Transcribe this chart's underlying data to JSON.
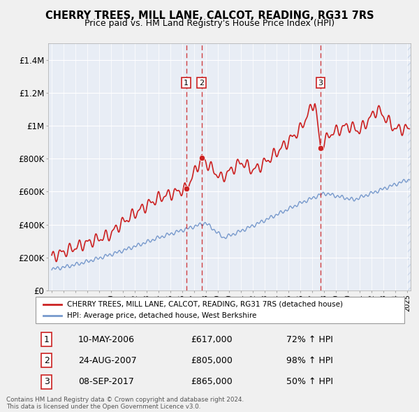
{
  "title": "CHERRY TREES, MILL LANE, CALCOT, READING, RG31 7RS",
  "subtitle": "Price paid vs. HM Land Registry's House Price Index (HPI)",
  "bg_color": "#f0f0f0",
  "plot_bg_color": "#e8edf5",
  "grid_color": "#ffffff",
  "ylim": [
    0,
    1500000
  ],
  "yticks": [
    0,
    200000,
    400000,
    600000,
    800000,
    1000000,
    1200000,
    1400000
  ],
  "ytick_labels": [
    "£0",
    "£200K",
    "£400K",
    "£600K",
    "£800K",
    "£1M",
    "£1.2M",
    "£1.4M"
  ],
  "xlim_start": 1994.7,
  "xlim_end": 2025.3,
  "red_line_color": "#cc2222",
  "blue_line_color": "#7799cc",
  "sale_marker_color": "#cc2222",
  "vline_color": "#cc2222",
  "transactions": [
    {
      "num": 1,
      "date": "10-MAY-2006",
      "price": 617000,
      "pct": "72%",
      "x_year": 2006.36
    },
    {
      "num": 2,
      "date": "24-AUG-2007",
      "price": 805000,
      "pct": "98%",
      "x_year": 2007.65
    },
    {
      "num": 3,
      "date": "08-SEP-2017",
      "price": 865000,
      "pct": "50%",
      "x_year": 2017.69
    }
  ],
  "legend_line1": "CHERRY TREES, MILL LANE, CALCOT, READING, RG31 7RS (detached house)",
  "legend_line2": "HPI: Average price, detached house, West Berkshire",
  "copyright_text": "Contains HM Land Registry data © Crown copyright and database right 2024.\nThis data is licensed under the Open Government Licence v3.0.",
  "future_start": 2025.0,
  "hatch_color": "#c8d4e8"
}
